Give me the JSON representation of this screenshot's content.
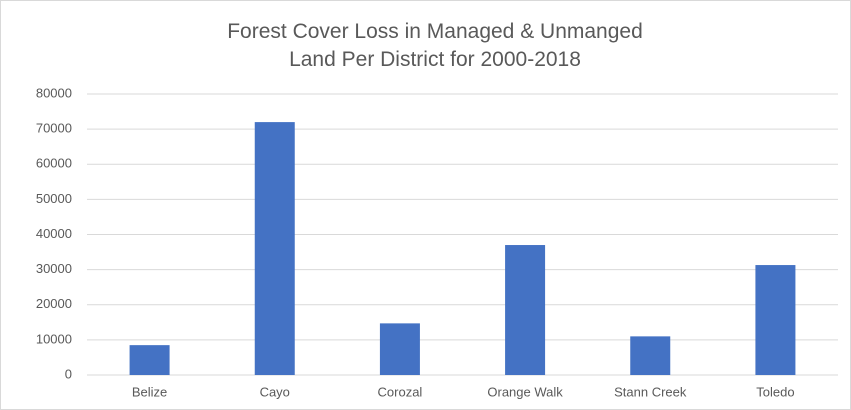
{
  "chart_data": {
    "type": "bar",
    "title": "Forest Cover Loss in Managed & Unmanged Land Per District for 2000-2018",
    "categories": [
      "Belize",
      "Cayo",
      "Corozal",
      "Orange Walk",
      "Stann Creek",
      "Toledo"
    ],
    "values": [
      8500,
      72000,
      14700,
      37000,
      11000,
      31300
    ],
    "color": "#4472c4",
    "ylim": [
      0,
      80000
    ],
    "yticks": [
      0,
      10000,
      20000,
      30000,
      40000,
      50000,
      60000,
      70000,
      80000
    ],
    "grid": true
  }
}
